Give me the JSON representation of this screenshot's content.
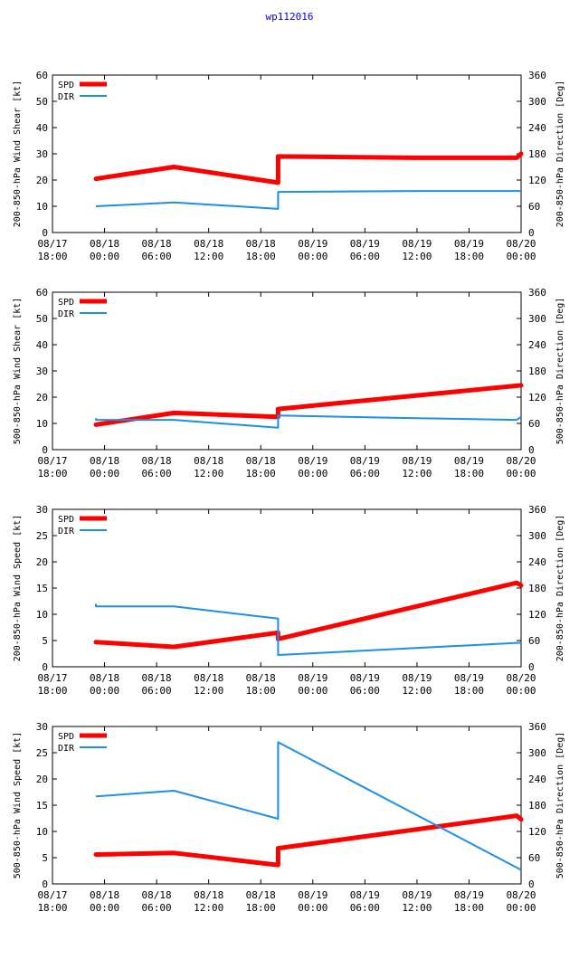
{
  "page_title": "wp112016",
  "colors": {
    "spd": "#ff0000",
    "dir": "#1e8ee6",
    "frame": "#000000"
  },
  "legend": {
    "spd": "SPD",
    "dir": "DIR"
  },
  "x_ticks": [
    {
      "line1": "08/17",
      "line2": "18:00"
    },
    {
      "line1": "08/18",
      "line2": "00:00"
    },
    {
      "line1": "08/18",
      "line2": "06:00"
    },
    {
      "line1": "08/18",
      "line2": "12:00"
    },
    {
      "line1": "08/18",
      "line2": "18:00"
    },
    {
      "line1": "08/19",
      "line2": "00:00"
    },
    {
      "line1": "08/19",
      "line2": "06:00"
    },
    {
      "line1": "08/19",
      "line2": "12:00"
    },
    {
      "line1": "08/19",
      "line2": "18:00"
    },
    {
      "line1": "08/20",
      "line2": "00:00"
    }
  ],
  "chart_data": [
    {
      "type": "line",
      "xlabel": "",
      "ylabel": "200-850-hPa Wind Shear [kt]",
      "y2label": "200-850-hPa Direction [Deg]",
      "xlim_hours": [
        0,
        54
      ],
      "ylim": [
        0,
        60
      ],
      "yticks": [
        0,
        10,
        20,
        30,
        40,
        50,
        60
      ],
      "y2lim": [
        0,
        360
      ],
      "y2ticks": [
        0,
        60,
        120,
        180,
        240,
        300,
        360
      ],
      "series": [
        {
          "name": "SPD",
          "x_hours": [
            5,
            14,
            26,
            26,
            42,
            53.5,
            54
          ],
          "values": [
            20.5,
            25,
            19,
            29,
            28.5,
            28.5,
            30
          ]
        },
        {
          "name": "DIR",
          "x_hours": [
            5,
            14,
            26,
            26,
            42,
            54
          ],
          "values": [
            60,
            69,
            54,
            93,
            95,
            95
          ]
        }
      ]
    },
    {
      "type": "line",
      "xlabel": "",
      "ylabel": "500-850-hPa Wind Shear [kt]",
      "y2label": "500-850-hPa Direction [Deg]",
      "xlim_hours": [
        0,
        54
      ],
      "ylim": [
        0,
        60
      ],
      "yticks": [
        0,
        10,
        20,
        30,
        40,
        50,
        60
      ],
      "y2lim": [
        0,
        360
      ],
      "y2ticks": [
        0,
        60,
        120,
        180,
        240,
        300,
        360
      ],
      "series": [
        {
          "name": "SPD",
          "x_hours": [
            5,
            14,
            26,
            26,
            54
          ],
          "values": [
            9.5,
            14,
            12.5,
            15.5,
            24.5
          ]
        },
        {
          "name": "DIR",
          "x_hours": [
            5,
            5,
            14,
            26,
            26,
            42,
            53.5,
            54
          ],
          "values": [
            72,
            68,
            68,
            50,
            78,
            72,
            68,
            75
          ]
        }
      ]
    },
    {
      "type": "line",
      "xlabel": "",
      "ylabel": "200-850-hPa Wind Speed [kt]",
      "y2label": "200-850-hPa Direction [Deg]",
      "xlim_hours": [
        0,
        54
      ],
      "ylim": [
        0,
        30
      ],
      "yticks": [
        0,
        5,
        10,
        15,
        20,
        25,
        30
      ],
      "y2lim": [
        0,
        360
      ],
      "y2ticks": [
        0,
        60,
        120,
        180,
        240,
        300,
        360
      ],
      "series": [
        {
          "name": "SPD",
          "x_hours": [
            5,
            14,
            26,
            26,
            53.5,
            54
          ],
          "values": [
            4.7,
            3.8,
            6.5,
            5.3,
            16,
            15.5
          ]
        },
        {
          "name": "DIR",
          "x_hours": [
            5,
            5,
            14,
            26,
            26,
            26,
            54
          ],
          "values": [
            144,
            138,
            138,
            110,
            56,
            27,
            55
          ]
        }
      ]
    },
    {
      "type": "line",
      "xlabel": "",
      "ylabel": "500-850-hPa Wind Speed [kt]",
      "y2label": "500-850-hPa Direction [Deg]",
      "xlim_hours": [
        0,
        54
      ],
      "ylim": [
        0,
        30
      ],
      "yticks": [
        0,
        5,
        10,
        15,
        20,
        25,
        30
      ],
      "y2lim": [
        0,
        360
      ],
      "y2ticks": [
        0,
        60,
        120,
        180,
        240,
        300,
        360
      ],
      "series": [
        {
          "name": "SPD",
          "x_hours": [
            5,
            14,
            26,
            26,
            53.5,
            54
          ],
          "values": [
            5.6,
            5.9,
            3.6,
            6.8,
            13,
            12.3
          ]
        },
        {
          "name": "DIR",
          "x_hours": [
            5,
            14,
            26,
            26,
            54
          ],
          "values": [
            200,
            213,
            149,
            324,
            32
          ]
        }
      ]
    }
  ]
}
